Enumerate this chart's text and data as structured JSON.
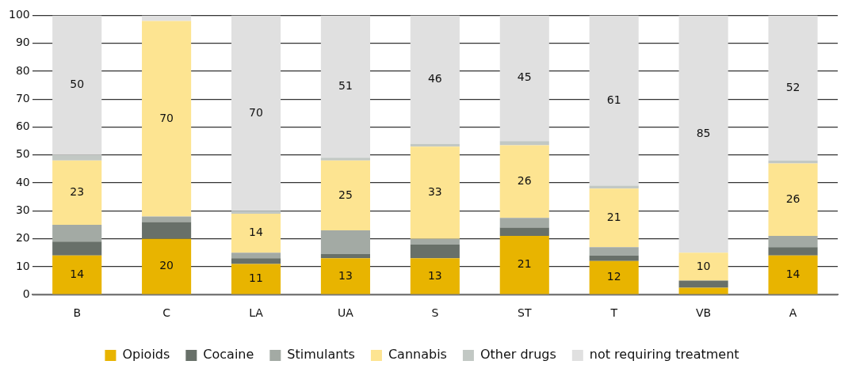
{
  "chart_data": {
    "type": "bar",
    "stacked": true,
    "categories": [
      "B",
      "C",
      "LA",
      "UA",
      "S",
      "ST",
      "T",
      "VB",
      "A"
    ],
    "ylim": [
      0,
      100
    ],
    "yticks": [
      0,
      10,
      20,
      30,
      40,
      50,
      60,
      70,
      80,
      90,
      100
    ],
    "grid": "y",
    "legend": "bottom",
    "series": [
      {
        "name": "Opioids",
        "color": "#e8b400",
        "values": [
          14,
          20,
          11,
          13,
          13,
          21,
          12,
          2.5,
          14
        ],
        "value_labels": [
          "14",
          "20",
          "11",
          "13",
          "13",
          "21",
          "12",
          null,
          "14"
        ]
      },
      {
        "name": "Cocaine",
        "color": "#687069",
        "values": [
          5,
          6,
          2,
          1.5,
          5,
          3,
          2,
          2.5,
          3
        ]
      },
      {
        "name": "Stimulants",
        "color": "#a3aaa4",
        "values": [
          6,
          2,
          2,
          8.5,
          2,
          3.5,
          3,
          0,
          4
        ]
      },
      {
        "name": "Cannabis",
        "color": "#fde491",
        "values": [
          23,
          70,
          14,
          25,
          33,
          26,
          21,
          10,
          26
        ],
        "value_labels": [
          "23",
          "70",
          "14",
          "25",
          "33",
          "26",
          "21",
          "10",
          "26"
        ]
      },
      {
        "name": "Other drugs",
        "color": "#c2c8c4",
        "values": [
          2,
          0,
          1,
          1,
          1,
          1.5,
          1,
          0,
          1
        ]
      },
      {
        "name": "not requiring treatment",
        "color": "#e0e0e0",
        "values": [
          50,
          2,
          70,
          51,
          46,
          45,
          61,
          85,
          52
        ],
        "value_labels": [
          "50",
          null,
          "70",
          "51",
          "46",
          "45",
          "61",
          "85",
          "52"
        ]
      }
    ]
  }
}
